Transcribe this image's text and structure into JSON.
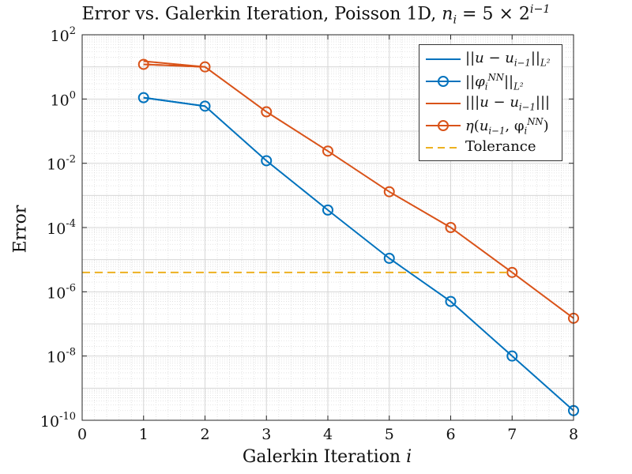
{
  "chart_data": {
    "type": "line",
    "title_parts": {
      "main": "Error vs. Galerkin Iteration, Poisson 1D, ",
      "math_var": "n",
      "math_sub": "i",
      "math_rest": " = 5 × 2",
      "math_sup": "i−1"
    },
    "xlabel": "Galerkin Iteration",
    "xlabel_var": "i",
    "ylabel": "Error",
    "xlim": [
      0,
      8
    ],
    "ylim_log10": [
      -10,
      2
    ],
    "yscale": "log",
    "grid": true,
    "legend_position": "top-right",
    "x_ticks": [
      "0",
      "1",
      "2",
      "3",
      "4",
      "5",
      "6",
      "7",
      "8"
    ],
    "y_ticks": [
      {
        "base": "10",
        "exp": "2"
      },
      {
        "base": "10",
        "exp": "0"
      },
      {
        "base": "10",
        "exp": "-2"
      },
      {
        "base": "10",
        "exp": "-4"
      },
      {
        "base": "10",
        "exp": "-6"
      },
      {
        "base": "10",
        "exp": "-8"
      },
      {
        "base": "10",
        "exp": "-10"
      }
    ],
    "series": [
      {
        "name": "||u − u_{i−1}||_{L²}",
        "color": "#0072BD",
        "marker": "none",
        "dash": "solid",
        "x": [
          1,
          2
        ],
        "y": [
          1.1,
          0.6
        ]
      },
      {
        "name": "||φ_i^{NN}||_{L²}",
        "color": "#0072BD",
        "marker": "circle",
        "dash": "solid",
        "x": [
          1,
          2,
          3,
          4,
          5,
          6,
          7,
          8
        ],
        "y": [
          1.1,
          0.6,
          0.012,
          0.00035,
          1.1e-05,
          5e-07,
          1e-08,
          2e-10
        ]
      },
      {
        "name": "|||u − u_{i−1}|||",
        "color": "#D95319",
        "marker": "none",
        "dash": "solid",
        "x": [
          1,
          2
        ],
        "y": [
          15,
          10
        ]
      },
      {
        "name": "η(u_{i−1}, φ_i^{NN})",
        "color": "#D95319",
        "marker": "circle",
        "dash": "solid",
        "x": [
          1,
          2,
          3,
          4,
          5,
          6,
          7,
          8
        ],
        "y": [
          12,
          10,
          0.4,
          0.024,
          0.0013,
          0.0001,
          4e-06,
          1.5e-07
        ]
      },
      {
        "name": "Tolerance",
        "color": "#EDB120",
        "marker": "none",
        "dash": "dashed",
        "x": [
          0,
          7
        ],
        "y": [
          4e-06,
          4e-06
        ]
      },
      {
        "name": "",
        "color": "#D95319",
        "marker": "none",
        "dash": "dashed",
        "x": [
          1,
          2
        ],
        "y": [
          12,
          10
        ]
      }
    ],
    "legend": [
      {
        "pre": "||",
        "var": "u",
        "mid": " − ",
        "var2": "u",
        "sub2": "i−1",
        "post": "||",
        "postsub": "L²"
      },
      {
        "pre": "||",
        "var": "φ",
        "sub": "i",
        "sup": "NN",
        "post": "||",
        "postsub": "L²"
      },
      {
        "pre": "|||",
        "var": "u",
        "mid": " − ",
        "var2": "u",
        "sub2": "i−1",
        "post": "|||"
      },
      {
        "pre": "",
        "var": "η",
        "mid": "(",
        "var2": "u",
        "sub2": "i−1",
        "post": ", φ",
        "postsub": "i",
        "postsup": "NN",
        "tail": ")"
      },
      {
        "pre": "",
        "text": "Tolerance"
      }
    ]
  }
}
